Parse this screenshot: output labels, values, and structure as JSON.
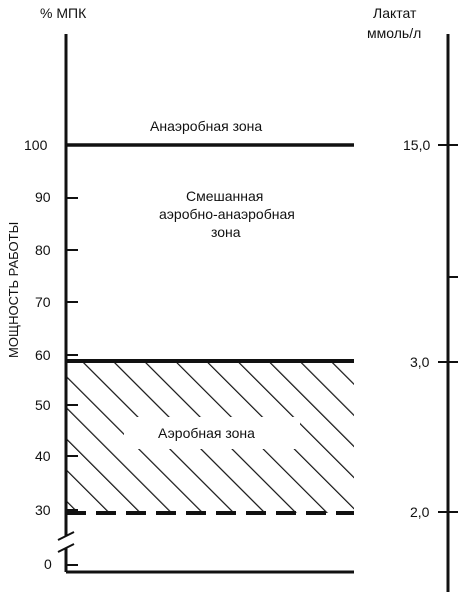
{
  "left_axis": {
    "title": "% МПК",
    "ticks": [
      "100",
      "90",
      "80",
      "70",
      "60",
      "50",
      "40",
      "30",
      "0"
    ]
  },
  "right_axis": {
    "title_line1": "Лактат",
    "title_line2": "ммоль/л",
    "ticks": [
      "15,0",
      "3,0",
      "2,0"
    ]
  },
  "vertical_label": "МОЩНОСТЬ РАБОТЫ",
  "zones": {
    "anaerobic": "Анаэробная зона",
    "mixed_line1": "Смешанная",
    "mixed_line2": "аэробно-анаэробная",
    "mixed_line3": "зона",
    "aerobic": "Аэробная зона"
  },
  "colors": {
    "line": "#111111",
    "background": "#ffffff"
  }
}
